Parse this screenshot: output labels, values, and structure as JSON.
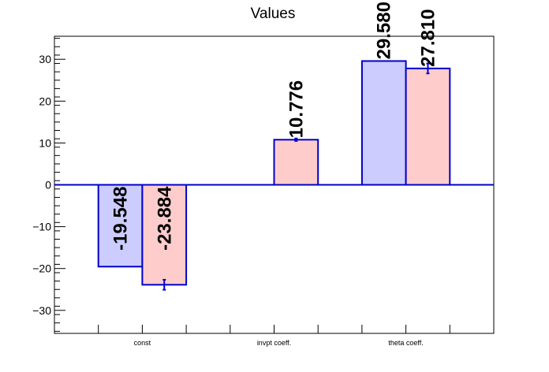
{
  "chart_data": {
    "type": "bar",
    "title": "Values",
    "xlabel": "",
    "ylabel": "",
    "categories": [
      "const",
      "invpt coeff.",
      "theta coeff."
    ],
    "ylim": [
      -35.5,
      35.5
    ],
    "yticks": [
      -30,
      -20,
      -10,
      0,
      10,
      20,
      30
    ],
    "ytick_labels": [
      "−30",
      "−20",
      "−10",
      "0",
      "10",
      "20",
      "30"
    ],
    "grid": false,
    "legend": "none",
    "series": [
      {
        "color": "#ccccff",
        "values": [
          -19.548,
          null,
          29.58
        ],
        "errors": [
          0,
          null,
          0
        ],
        "labels": [
          "-19.548",
          "",
          "29.580"
        ]
      },
      {
        "color": "#ffcccc",
        "values": [
          -23.884,
          10.776,
          27.81
        ],
        "errors": [
          1.2,
          0.3,
          1.2
        ],
        "labels": [
          "-23.884",
          "10.776",
          "27.810"
        ]
      }
    ],
    "bar_edge_color": "#0000cc",
    "zero_line_color": "#0000cc"
  }
}
